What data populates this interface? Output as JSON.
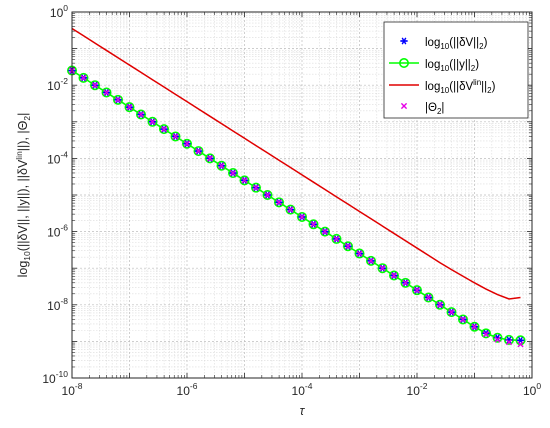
{
  "chart_data": {
    "type": "line",
    "xscale": "log",
    "yscale": "log",
    "xlim": [
      1e-08,
      1
    ],
    "ylim": [
      1e-10,
      1
    ],
    "grid": true,
    "minor_grid": true,
    "legend_position": "top-right",
    "xlabel": "τ",
    "ylabel": {
      "pre": "log",
      "sub": "10",
      "body_open": "(||δV||, ||y||), ||δV",
      "sup": "lin",
      "body_close": "||), |Θ",
      "sub2": "2",
      "end": "|"
    },
    "x_ticks": [
      {
        "base": "10",
        "exp": "-8"
      },
      {
        "base": "10",
        "exp": "-6"
      },
      {
        "base": "10",
        "exp": "-4"
      },
      {
        "base": "10",
        "exp": "-2"
      },
      {
        "base": "10",
        "exp": "0"
      }
    ],
    "y_ticks": [
      {
        "base": "10",
        "exp": "-10"
      },
      {
        "base": "10",
        "exp": "-8"
      },
      {
        "base": "10",
        "exp": "-6"
      },
      {
        "base": "10",
        "exp": "-4"
      },
      {
        "base": "10",
        "exp": "-2"
      },
      {
        "base": "10",
        "exp": "0"
      }
    ],
    "x_points_range": {
      "log10_start": -8,
      "log10_step": 0.2,
      "count": 40
    },
    "series": [
      {
        "key": "dV",
        "marker": "asterisk",
        "color": "#0000ff",
        "legend": {
          "pre": "log",
          "sub": "10",
          "mid": "(||δV||",
          "sub2": "2",
          "end": ")"
        },
        "y_log10": [
          -1.6,
          -1.8,
          -2.0,
          -2.2,
          -2.4,
          -2.6,
          -2.8,
          -3.0,
          -3.2,
          -3.4,
          -3.6,
          -3.8,
          -4.0,
          -4.2,
          -4.4,
          -4.6,
          -4.8,
          -5.0,
          -5.2,
          -5.4,
          -5.6,
          -5.8,
          -6.0,
          -6.2,
          -6.4,
          -6.6,
          -6.8,
          -7.0,
          -7.2,
          -7.4,
          -7.6,
          -7.8,
          -8.0,
          -8.2,
          -8.4,
          -8.6,
          -8.78,
          -8.9,
          -8.96,
          -8.97
        ]
      },
      {
        "key": "y",
        "marker": "circle-line",
        "color": "#00ff00",
        "legend": {
          "pre": "log",
          "sub": "10",
          "mid": "(||y||",
          "sub2": "2",
          "end": ")"
        },
        "y_log10": [
          -1.6,
          -1.8,
          -2.0,
          -2.2,
          -2.4,
          -2.6,
          -2.8,
          -3.0,
          -3.2,
          -3.4,
          -3.6,
          -3.8,
          -4.0,
          -4.2,
          -4.4,
          -4.6,
          -4.8,
          -5.0,
          -5.2,
          -5.4,
          -5.6,
          -5.8,
          -6.0,
          -6.2,
          -6.4,
          -6.6,
          -6.8,
          -7.0,
          -7.2,
          -7.4,
          -7.6,
          -7.8,
          -8.0,
          -8.2,
          -8.4,
          -8.6,
          -8.78,
          -8.9,
          -8.96,
          -8.97
        ]
      },
      {
        "key": "dVlin",
        "marker": "none",
        "color": "#e00000",
        "legend": {
          "pre": "log",
          "sub": "10",
          "mid": "(||δV",
          "sup": "lin",
          "mid2": "||",
          "sub2": "2",
          "end": ")"
        },
        "y_log10": [
          -0.45,
          -0.65,
          -0.85,
          -1.05,
          -1.25,
          -1.45,
          -1.65,
          -1.85,
          -2.05,
          -2.25,
          -2.45,
          -2.65,
          -2.85,
          -3.05,
          -3.25,
          -3.45,
          -3.65,
          -3.85,
          -4.05,
          -4.25,
          -4.45,
          -4.65,
          -4.85,
          -5.05,
          -5.25,
          -5.45,
          -5.65,
          -5.85,
          -6.05,
          -6.25,
          -6.45,
          -6.65,
          -6.85,
          -7.04,
          -7.22,
          -7.4,
          -7.57,
          -7.72,
          -7.84,
          -7.8
        ]
      },
      {
        "key": "theta",
        "marker": "x",
        "color": "#e600e6",
        "legend": {
          "pre": "|Θ",
          "sub": "2",
          "end": "|"
        },
        "y_log10": [
          -1.6,
          -1.8,
          -2.0,
          -2.2,
          -2.4,
          -2.6,
          -2.8,
          -3.0,
          -3.2,
          -3.4,
          -3.6,
          -3.8,
          -4.0,
          -4.2,
          -4.4,
          -4.6,
          -4.8,
          -5.0,
          -5.2,
          -5.4,
          -5.6,
          -5.8,
          -6.0,
          -6.2,
          -6.4,
          -6.6,
          -6.8,
          -7.0,
          -7.2,
          -7.4,
          -7.6,
          -7.8,
          -8.0,
          -8.2,
          -8.4,
          -8.6,
          -8.8,
          -8.95,
          -9.02,
          -9.08
        ]
      }
    ]
  }
}
